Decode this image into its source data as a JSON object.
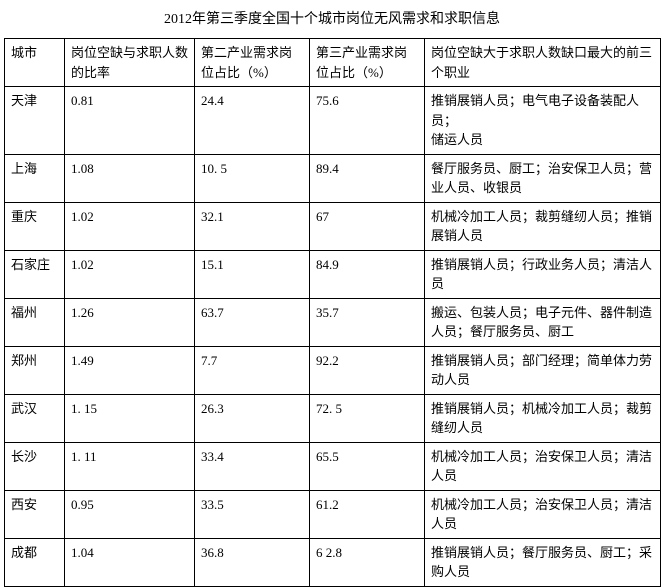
{
  "title": "2012年第三季度全国十个城市岗位无风需求和求职信息",
  "table": {
    "columns": [
      "城市",
      "岗位空缺与求职人数的比率",
      "第二产业需求岗位占比（%）",
      "第三产业需求岗位占比（%）",
      "岗位空缺大于求职人数缺口最大的前三个职业"
    ],
    "col_classes": [
      "col-city",
      "col-ratio",
      "col-ind2",
      "col-ind3",
      "col-jobs"
    ],
    "rows": [
      [
        "天津",
        "0.81",
        "24.4",
        "75.6",
        "推销展销人员；电气电子设备装配人员；\n储运人员"
      ],
      [
        "上海",
        "1.08",
        "10. 5",
        "89.4",
        "餐厅服务员、厨工；治安保卫人员；营业人员、收银员"
      ],
      [
        "重庆",
        "1.02",
        "32.1",
        "67",
        "机械冷加工人员；裁剪缝纫人员；推销展销人员"
      ],
      [
        "石家庄",
        "1.02",
        "15.1",
        "84.9",
        "推销展销人员；行政业务人员；清洁人员"
      ],
      [
        "福州",
        "1.26",
        "63.7",
        "35.7",
        "搬运、包装人员；电子元件、器件制造人员；餐厅服务员、厨工"
      ],
      [
        "郑州",
        "1.49",
        "7.7",
        "92.2",
        "推销展销人员；部门经理；简单体力劳动人员"
      ],
      [
        "武汉",
        "1. 15",
        "26.3",
        "72. 5",
        "推销展销人员；机械冷加工人员；裁剪缝纫人员"
      ],
      [
        "长沙",
        "1. 11",
        "33.4",
        "65.5",
        "机械冷加工人员；治安保卫人员；清洁人员"
      ],
      [
        "西安",
        "0.95",
        "33.5",
        "61.2",
        "机械冷加工人员；治安保卫人员；清洁人员"
      ],
      [
        "成都",
        "1.04",
        "36.8",
        "6 2.8",
        "推销展销人员；餐厅服务员、厨工；采购人员"
      ]
    ]
  },
  "style": {
    "font_family": "SimSun",
    "title_fontsize": 14,
    "cell_fontsize": 13,
    "border_color": "#000000",
    "background_color": "#ffffff",
    "text_color": "#000000"
  }
}
